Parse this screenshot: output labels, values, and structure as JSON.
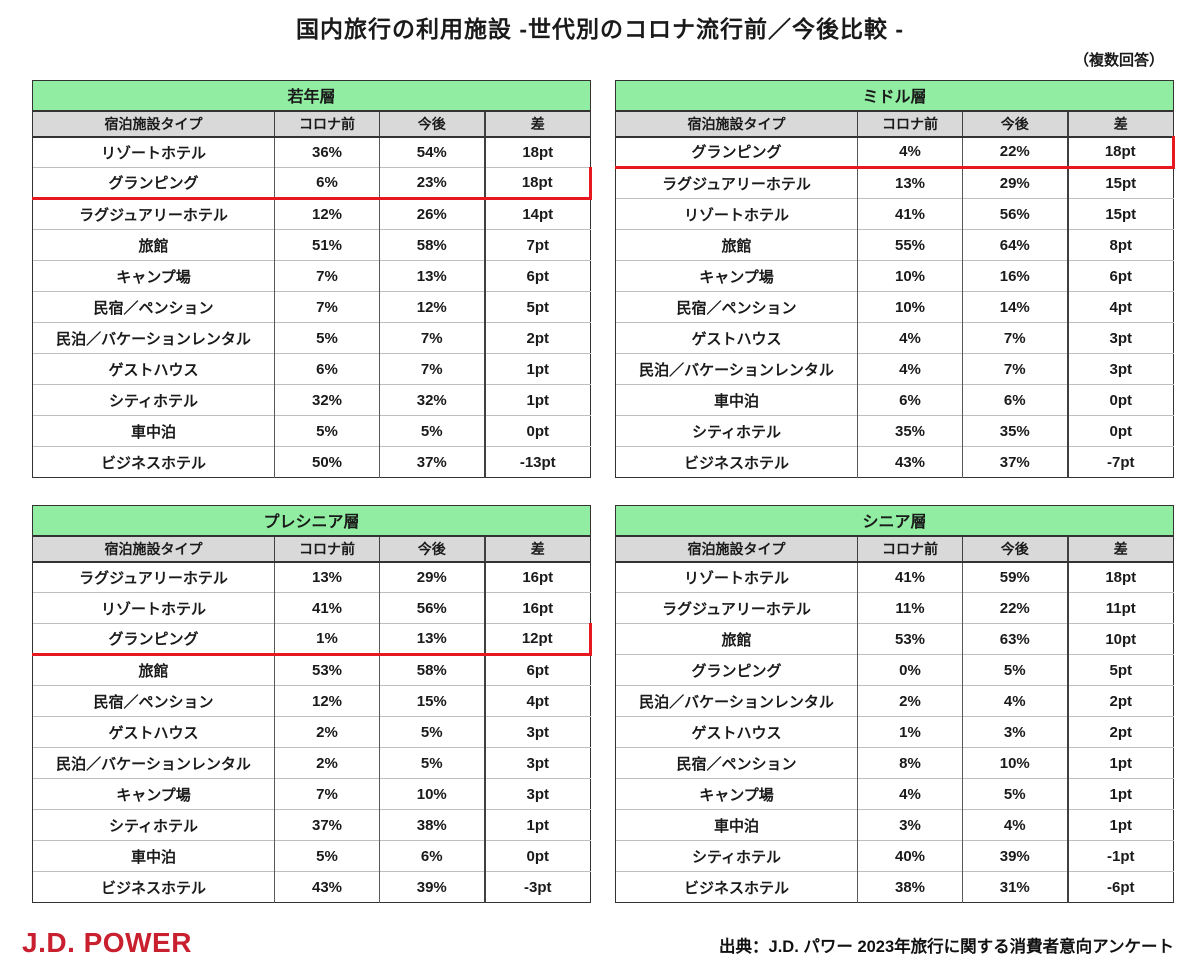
{
  "page": {
    "title": "国内旅行の利用施設  -世代別のコロナ流行前／今後比較 -",
    "note": "（複数回答）",
    "logo_text": "J.D. POWER",
    "source": "出典：J.D. パワー 2023年旅行に関する消費者意向アンケート"
  },
  "colors": {
    "table_title_green": "#90eda1",
    "column_header_gray": "#d9d9d9",
    "highlight_red": "#e8191e",
    "logo_red": "#c8202e"
  },
  "chart_data": [
    {
      "type": "table",
      "title": "若年層",
      "columns": [
        "宿泊施設タイプ",
        "コロナ前",
        "今後",
        "差"
      ],
      "highlight_row_index": 1,
      "rows": [
        [
          "リゾートホテル",
          "36%",
          "54%",
          "18pt"
        ],
        [
          "グランピング",
          "6%",
          "23%",
          "18pt"
        ],
        [
          "ラグジュアリーホテル",
          "12%",
          "26%",
          "14pt"
        ],
        [
          "旅館",
          "51%",
          "58%",
          "7pt"
        ],
        [
          "キャンプ場",
          "7%",
          "13%",
          "6pt"
        ],
        [
          "民宿／ペンション",
          "7%",
          "12%",
          "5pt"
        ],
        [
          "民泊／バケーションレンタル",
          "5%",
          "7%",
          "2pt"
        ],
        [
          "ゲストハウス",
          "6%",
          "7%",
          "1pt"
        ],
        [
          "シティホテル",
          "32%",
          "32%",
          "1pt"
        ],
        [
          "車中泊",
          "5%",
          "5%",
          "0pt"
        ],
        [
          "ビジネスホテル",
          "50%",
          "37%",
          "-13pt"
        ]
      ]
    },
    {
      "type": "table",
      "title": "ミドル層",
      "columns": [
        "宿泊施設タイプ",
        "コロナ前",
        "今後",
        "差"
      ],
      "highlight_row_index": 0,
      "rows": [
        [
          "グランピング",
          "4%",
          "22%",
          "18pt"
        ],
        [
          "ラグジュアリーホテル",
          "13%",
          "29%",
          "15pt"
        ],
        [
          "リゾートホテル",
          "41%",
          "56%",
          "15pt"
        ],
        [
          "旅館",
          "55%",
          "64%",
          "8pt"
        ],
        [
          "キャンプ場",
          "10%",
          "16%",
          "6pt"
        ],
        [
          "民宿／ペンション",
          "10%",
          "14%",
          "4pt"
        ],
        [
          "ゲストハウス",
          "4%",
          "7%",
          "3pt"
        ],
        [
          "民泊／バケーションレンタル",
          "4%",
          "7%",
          "3pt"
        ],
        [
          "車中泊",
          "6%",
          "6%",
          "0pt"
        ],
        [
          "シティホテル",
          "35%",
          "35%",
          "0pt"
        ],
        [
          "ビジネスホテル",
          "43%",
          "37%",
          "-7pt"
        ]
      ]
    },
    {
      "type": "table",
      "title": "プレシニア層",
      "columns": [
        "宿泊施設タイプ",
        "コロナ前",
        "今後",
        "差"
      ],
      "highlight_row_index": 2,
      "rows": [
        [
          "ラグジュアリーホテル",
          "13%",
          "29%",
          "16pt"
        ],
        [
          "リゾートホテル",
          "41%",
          "56%",
          "16pt"
        ],
        [
          "グランピング",
          "1%",
          "13%",
          "12pt"
        ],
        [
          "旅館",
          "53%",
          "58%",
          "6pt"
        ],
        [
          "民宿／ペンション",
          "12%",
          "15%",
          "4pt"
        ],
        [
          "ゲストハウス",
          "2%",
          "5%",
          "3pt"
        ],
        [
          "民泊／バケーションレンタル",
          "2%",
          "5%",
          "3pt"
        ],
        [
          "キャンプ場",
          "7%",
          "10%",
          "3pt"
        ],
        [
          "シティホテル",
          "37%",
          "38%",
          "1pt"
        ],
        [
          "車中泊",
          "5%",
          "6%",
          "0pt"
        ],
        [
          "ビジネスホテル",
          "43%",
          "39%",
          "-3pt"
        ]
      ]
    },
    {
      "type": "table",
      "title": "シニア層",
      "columns": [
        "宿泊施設タイプ",
        "コロナ前",
        "今後",
        "差"
      ],
      "highlight_row_index": -1,
      "rows": [
        [
          "リゾートホテル",
          "41%",
          "59%",
          "18pt"
        ],
        [
          "ラグジュアリーホテル",
          "11%",
          "22%",
          "11pt"
        ],
        [
          "旅館",
          "53%",
          "63%",
          "10pt"
        ],
        [
          "グランピング",
          "0%",
          "5%",
          "5pt"
        ],
        [
          "民泊／バケーションレンタル",
          "2%",
          "4%",
          "2pt"
        ],
        [
          "ゲストハウス",
          "1%",
          "3%",
          "2pt"
        ],
        [
          "民宿／ペンション",
          "8%",
          "10%",
          "1pt"
        ],
        [
          "キャンプ場",
          "4%",
          "5%",
          "1pt"
        ],
        [
          "車中泊",
          "3%",
          "4%",
          "1pt"
        ],
        [
          "シティホテル",
          "40%",
          "39%",
          "-1pt"
        ],
        [
          "ビジネスホテル",
          "38%",
          "31%",
          "-6pt"
        ]
      ]
    }
  ]
}
